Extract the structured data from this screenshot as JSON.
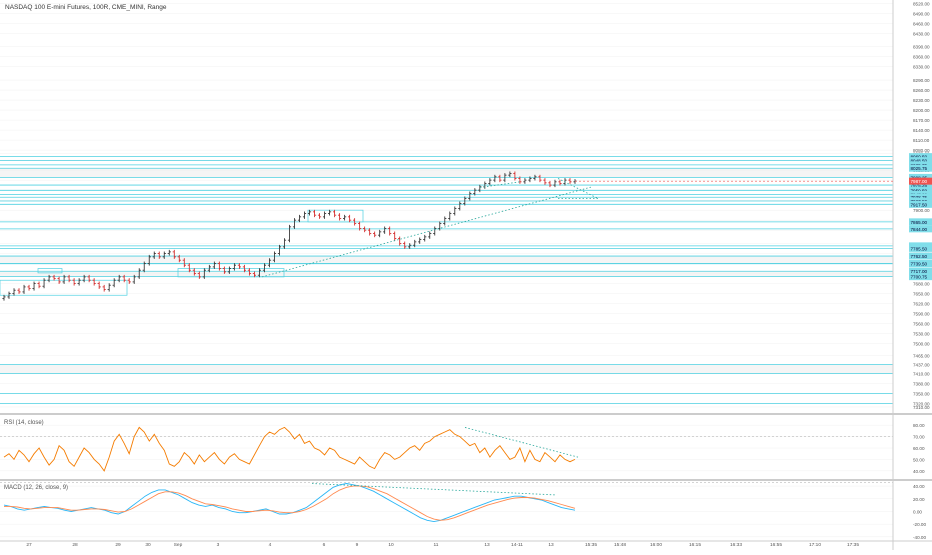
{
  "header": {
    "title": "NASDAQ 100 E-mini Futures, 100R, CME_MINI, Range"
  },
  "colors": {
    "bull_bar": "#3a3a3a",
    "bear_bar": "#d32f2f",
    "level_line": "#4dd0e1",
    "level_zone_fill": "#eeeeee",
    "trend_line": "#26a69a",
    "price_label_bg": "#80deea",
    "last_price_bg": "#ef5350",
    "rsi_line": "#f57c00",
    "macd_line": "#29b6f6",
    "signal_line": "#ff8a50",
    "grid": "#f0f0f0",
    "axis_text": "#555555"
  },
  "chart_data": [
    {
      "type": "ohlc",
      "panel": "price",
      "ylim": [
        7295,
        8530
      ],
      "y_ticks": [
        8520.0,
        8490.0,
        8460.0,
        8430.0,
        8390.0,
        8360.0,
        8330.0,
        8290.0,
        8260.0,
        8230.0,
        8200.0,
        8170.0,
        8140.0,
        8110.0,
        8080.0,
        8070.0,
        8050.0,
        8020.0,
        7990.0,
        7960.0,
        7930.0,
        7900.0,
        7870.0,
        7840.0,
        7800.0,
        7770.0,
        7740.0,
        7710.0,
        7680.0,
        7650.0,
        7620.0,
        7590.0,
        7560.0,
        7530.0,
        7500.0,
        7465.0,
        7437.0,
        7410.0,
        7380.0,
        7350.0,
        7320.0,
        7310.0
      ],
      "y_tick_labels": [
        "8520.00",
        "8490.00",
        "8460.00",
        "8430.00",
        "8390.00",
        "8360.00",
        "8330.00",
        "8290.00",
        "8260.00",
        "8230.00",
        "8200.00",
        "8170.00",
        "8140.00",
        "8110.00",
        "8080.00",
        "8070.00",
        "8050.00",
        "8020.00",
        "7990.00",
        "7960.00",
        "7930.00",
        "7900.00",
        "7870.00",
        "7840.00",
        "7800.00",
        "7770.00",
        "7740.00",
        "7710.00",
        "7680.00",
        "7650.00",
        "7620.00",
        "7590.00",
        "7560.00",
        "7530.00",
        "7500.00",
        "7465.00",
        "7437.00",
        "7410.00",
        "7380.00",
        "7350.00",
        "7320.00",
        "7310.00"
      ],
      "x_tick_labels": [
        "27",
        "28",
        "29",
        "30",
        "Sep",
        "3",
        "4",
        "6",
        "9",
        "10",
        "11",
        "13",
        "14-11",
        "13",
        "15:35",
        "15:48",
        "16:00",
        "16:15",
        "16:33",
        "16:55",
        "17:10",
        "17:35"
      ],
      "levels": [
        8060.5,
        8048.5,
        8035.75,
        8025.75,
        7998.25,
        7975.25,
        7959.5,
        7947.0,
        7938.75,
        7927.5,
        7917.5,
        7865.0,
        7844.0,
        7793.0,
        7785.5,
        7762.5,
        7740.0,
        7739.5,
        7717.0,
        7700.75
      ],
      "level_labels": [
        "8060.50",
        "8048.50",
        "8035.75",
        "8025.75",
        "7998.25",
        "7975.25",
        "7959.50",
        "7947.00",
        "7938.75",
        "7927.50",
        "7917.50",
        "7865.00",
        "7844.00",
        "7793.00",
        "7785.50",
        "7762.50",
        "7740.00",
        "7739.50",
        "7717.00",
        "7700.75"
      ],
      "last_price": 7987.0,
      "last_price_label": "7987.00",
      "closes": [
        7640,
        7650,
        7660,
        7655,
        7670,
        7665,
        7680,
        7672,
        7690,
        7700,
        7695,
        7685,
        7700,
        7690,
        7680,
        7690,
        7700,
        7690,
        7680,
        7670,
        7662,
        7675,
        7690,
        7700,
        7690,
        7685,
        7700,
        7720,
        7740,
        7760,
        7770,
        7760,
        7770,
        7775,
        7760,
        7750,
        7735,
        7720,
        7710,
        7700,
        7720,
        7730,
        7740,
        7725,
        7715,
        7725,
        7735,
        7730,
        7720,
        7710,
        7705,
        7720,
        7735,
        7750,
        7770,
        7790,
        7810,
        7850,
        7870,
        7880,
        7890,
        7895,
        7885,
        7880,
        7890,
        7895,
        7885,
        7875,
        7880,
        7870,
        7860,
        7845,
        7840,
        7830,
        7825,
        7835,
        7845,
        7830,
        7815,
        7800,
        7790,
        7795,
        7805,
        7812,
        7820,
        7830,
        7845,
        7860,
        7875,
        7890,
        7905,
        7920,
        7935,
        7950,
        7960,
        7970,
        7980,
        7990,
        8000,
        7990,
        8005,
        8010,
        7995,
        7985,
        7990,
        7995,
        8000,
        7990,
        7982,
        7975,
        7985,
        7980,
        7990,
        7985,
        7987
      ]
    },
    {
      "type": "line",
      "panel": "rsi",
      "title": "RSI (14, close)",
      "ylim": [
        32,
        88
      ],
      "y_ticks": [
        80,
        70,
        60,
        50,
        40
      ],
      "y_tick_labels": [
        "80.00",
        "70.00",
        "60.00",
        "50.00",
        "40.00"
      ],
      "series": [
        {
          "name": "RSI",
          "values": [
            52,
            55,
            50,
            58,
            54,
            48,
            55,
            60,
            52,
            45,
            50,
            62,
            58,
            48,
            44,
            52,
            60,
            56,
            50,
            46,
            40,
            52,
            66,
            72,
            64,
            55,
            70,
            78,
            74,
            66,
            72,
            64,
            58,
            46,
            44,
            48,
            56,
            52,
            46,
            54,
            48,
            52,
            56,
            50,
            46,
            52,
            55,
            50,
            48,
            46,
            54,
            62,
            70,
            74,
            72,
            76,
            78,
            74,
            68,
            72,
            64,
            66,
            60,
            58,
            54,
            60,
            58,
            52,
            50,
            48,
            46,
            52,
            48,
            44,
            42,
            50,
            56,
            54,
            50,
            52,
            56,
            60,
            62,
            58,
            64,
            66,
            70,
            72,
            74,
            76,
            72,
            70,
            66,
            62,
            64,
            56,
            60,
            52,
            58,
            62,
            56,
            50,
            52,
            60,
            48,
            58,
            50,
            48,
            56,
            52,
            48,
            54,
            50,
            48,
            50
          ]
        }
      ]
    },
    {
      "type": "line",
      "panel": "macd",
      "title": "MACD (12, 26, close, 9)",
      "ylim": [
        -45,
        48
      ],
      "y_ticks": [
        40,
        20,
        0,
        -20,
        -40
      ],
      "y_tick_labels": [
        "40.00",
        "20.00",
        "0.00",
        "-20.00",
        "-40.00"
      ],
      "series": [
        {
          "name": "MACD",
          "values": [
            10,
            8,
            4,
            2,
            4,
            6,
            8,
            6,
            5,
            2,
            0,
            2,
            4,
            6,
            4,
            2,
            -2,
            -4,
            0,
            8,
            16,
            24,
            30,
            34,
            34,
            30,
            26,
            20,
            14,
            10,
            8,
            10,
            6,
            4,
            0,
            -2,
            -2,
            0,
            2,
            4,
            0,
            -4,
            -4,
            -2,
            2,
            6,
            14,
            22,
            30,
            38,
            42,
            44,
            42,
            40,
            36,
            32,
            26,
            20,
            14,
            8,
            2,
            -4,
            -10,
            -14,
            -16,
            -14,
            -10,
            -6,
            -2,
            2,
            6,
            10,
            14,
            18,
            20,
            22,
            24,
            24,
            22,
            20,
            18,
            14,
            10,
            6,
            4,
            2
          ]
        },
        {
          "name": "Signal",
          "values": [
            8,
            8,
            7,
            5,
            4,
            5,
            6,
            6,
            6,
            4,
            2,
            2,
            3,
            4,
            4,
            3,
            1,
            -1,
            0,
            4,
            10,
            16,
            22,
            28,
            31,
            31,
            29,
            25,
            20,
            16,
            12,
            11,
            9,
            7,
            4,
            2,
            0,
            0,
            1,
            2,
            1,
            -1,
            -2,
            -2,
            0,
            3,
            8,
            14,
            20,
            28,
            34,
            38,
            40,
            40,
            39,
            36,
            32,
            28,
            22,
            16,
            10,
            4,
            -2,
            -8,
            -12,
            -14,
            -13,
            -10,
            -6,
            -2,
            2,
            6,
            10,
            13,
            16,
            19,
            21,
            22,
            22,
            21,
            19,
            17,
            14,
            11,
            8,
            5
          ]
        }
      ]
    }
  ]
}
